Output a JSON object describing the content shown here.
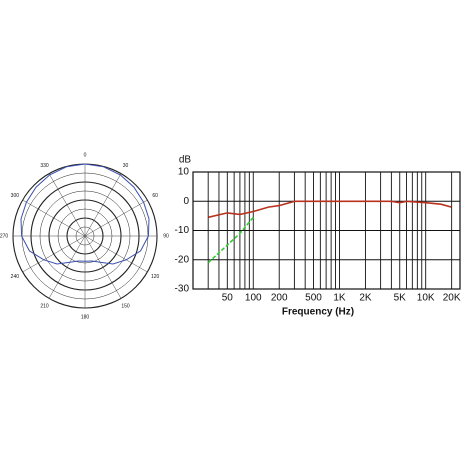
{
  "chart_data": [
    {
      "type": "polar",
      "color": "#3a4fb0",
      "theta": [
        0,
        15,
        30,
        45,
        60,
        75,
        90,
        105,
        120,
        135,
        150,
        165,
        180,
        195,
        210,
        225,
        240,
        255,
        270,
        285,
        300,
        315,
        330,
        345
      ],
      "values": [
        1,
        0.995,
        0.98,
        0.96,
        0.94,
        0.92,
        0.88,
        0.8,
        0.66,
        0.55,
        0.42,
        0.36,
        0.35,
        0.36,
        0.42,
        0.55,
        0.66,
        0.8,
        0.88,
        0.92,
        0.94,
        0.96,
        0.98,
        0.995
      ],
      "rlim": [
        0,
        1
      ],
      "rticks": [
        0.125,
        0.25,
        0.375,
        0.5,
        0.625,
        0.75,
        0.875,
        1
      ],
      "thetaticks": [
        0,
        30,
        60,
        90,
        120,
        150,
        180,
        210,
        240,
        270,
        300,
        330
      ]
    },
    {
      "type": "line",
      "xlabel": "Frequency (Hz)",
      "ylabel": "dB",
      "xscale": "log",
      "grid": true,
      "xlim": [
        20,
        25000
      ],
      "ylim": [
        -30,
        10
      ],
      "yticks": [
        -30,
        -20,
        -10,
        0,
        10
      ],
      "xticks": [
        50,
        100,
        200,
        500,
        {
          "value": 1000,
          "label": "1K"
        },
        {
          "value": 2000,
          "label": "2K"
        },
        {
          "value": 5000,
          "label": "5K"
        },
        {
          "value": 10000,
          "label": "10K"
        },
        {
          "value": 20000,
          "label": "20K"
        }
      ],
      "xgrid": [
        20,
        30,
        40,
        50,
        60,
        70,
        80,
        90,
        100,
        200,
        300,
        400,
        500,
        600,
        700,
        800,
        900,
        1000,
        2000,
        3000,
        4000,
        5000,
        6000,
        7000,
        8000,
        9000,
        10000,
        20000
      ],
      "series": [
        {
          "color": "#b8321f",
          "dashed": false,
          "x": [
            30,
            50,
            70,
            100,
            150,
            200,
            300,
            500,
            1000,
            2000,
            4000,
            5000,
            6000,
            10000,
            15000,
            20000
          ],
          "values": [
            -5.5,
            -4,
            -4.5,
            -3.5,
            -2,
            -1.5,
            0,
            0,
            0,
            0,
            0,
            -0.5,
            0,
            -0.5,
            -1,
            -2
          ]
        },
        {
          "color": "#33cc33",
          "dashed": true,
          "x": [
            30,
            50,
            70,
            100
          ],
          "values": [
            -21,
            -15,
            -11,
            -5.5
          ]
        }
      ]
    }
  ]
}
